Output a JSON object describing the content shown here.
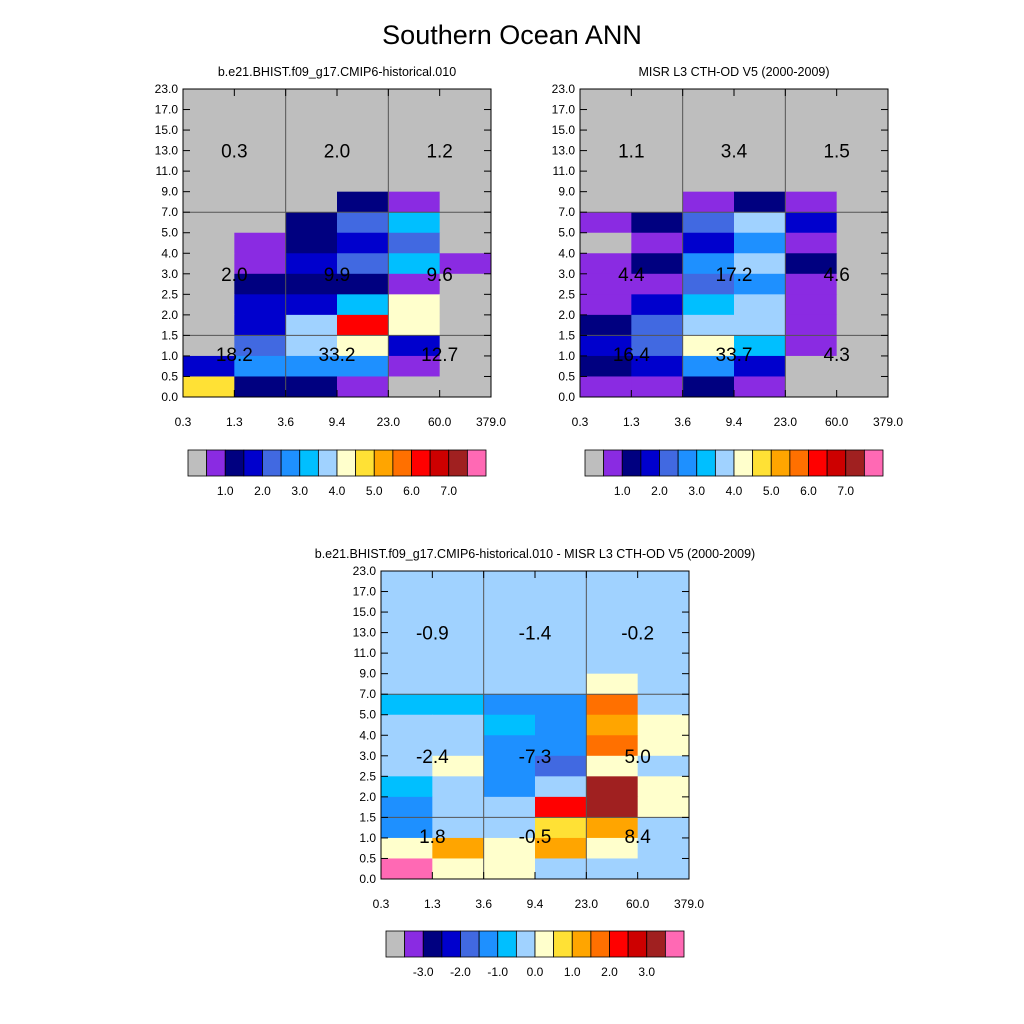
{
  "title": "Southern Ocean ANN",
  "shared_axes": {
    "x_tick_labels": [
      "0.3",
      "1.3",
      "3.6",
      "9.4",
      "23.0",
      "60.0",
      "379.0"
    ],
    "y_tick_labels": [
      "0.0",
      "0.5",
      "1.0",
      "1.5",
      "2.0",
      "2.5",
      "3.0",
      "4.0",
      "5.0",
      "7.0",
      "9.0",
      "11.0",
      "13.0",
      "15.0",
      "17.0",
      "23.0"
    ]
  },
  "colors": {
    "gray": "#bebebe",
    "violet": "#8a2be2",
    "navy": "#000080",
    "mediumblue": "#0000cd",
    "royalblue": "#4169e1",
    "dodgerblue": "#1e90ff",
    "deepskyblue": "#00bfff",
    "lightskyblue": "#a0d2ff",
    "lightyellow": "#ffffcc",
    "yellow": "#ffe135",
    "orange": "#ffa500",
    "darkorange": "#ff7000",
    "red": "#ff0000",
    "crimson": "#cd0000",
    "brown": "#a02020",
    "pink": "#ff69b4"
  },
  "colorbars": {
    "main": {
      "colors": [
        "gray",
        "violet",
        "navy",
        "mediumblue",
        "royalblue",
        "dodgerblue",
        "deepskyblue",
        "lightskyblue",
        "lightyellow",
        "yellow",
        "orange",
        "darkorange",
        "red",
        "crimson",
        "brown",
        "pink"
      ],
      "labels": [
        "1.0",
        "2.0",
        "3.0",
        "4.0",
        "5.0",
        "6.0",
        "7.0"
      ]
    },
    "diff": {
      "colors": [
        "gray",
        "violet",
        "navy",
        "mediumblue",
        "royalblue",
        "dodgerblue",
        "deepskyblue",
        "lightskyblue",
        "lightyellow",
        "yellow",
        "orange",
        "darkorange",
        "red",
        "crimson",
        "brown",
        "pink"
      ],
      "labels": [
        "-3.0",
        "-2.0",
        "-1.0",
        "0.0",
        "1.0",
        "2.0",
        "3.0"
      ]
    }
  },
  "chart_data": [
    {
      "type": "heatmap",
      "title": "b.e21.BHIST.f09_g17.CMIP6-historical.010",
      "colorbar": "main",
      "rows_top_to_bottom": [
        [
          "gray",
          "gray",
          "gray",
          "gray",
          "gray",
          "gray"
        ],
        [
          "gray",
          "gray",
          "gray",
          "gray",
          "gray",
          "gray"
        ],
        [
          "gray",
          "gray",
          "gray",
          "gray",
          "gray",
          "gray"
        ],
        [
          "gray",
          "gray",
          "gray",
          "gray",
          "gray",
          "gray"
        ],
        [
          "gray",
          "gray",
          "gray",
          "gray",
          "gray",
          "gray"
        ],
        [
          "gray",
          "gray",
          "gray",
          "navy",
          "violet",
          "gray"
        ],
        [
          "gray",
          "gray",
          "navy",
          "royalblue",
          "deepskyblue",
          "gray"
        ],
        [
          "gray",
          "violet",
          "navy",
          "mediumblue",
          "royalblue",
          "gray"
        ],
        [
          "gray",
          "violet",
          "mediumblue",
          "royalblue",
          "deepskyblue",
          "violet"
        ],
        [
          "gray",
          "navy",
          "navy",
          "navy",
          "violet",
          "gray"
        ],
        [
          "gray",
          "mediumblue",
          "mediumblue",
          "deepskyblue",
          "lightyellow",
          "gray"
        ],
        [
          "gray",
          "mediumblue",
          "lightskyblue",
          "red",
          "lightyellow",
          "gray"
        ],
        [
          "gray",
          "royalblue",
          "lightskyblue",
          "lightyellow",
          "mediumblue",
          "gray"
        ],
        [
          "mediumblue",
          "dodgerblue",
          "dodgerblue",
          "dodgerblue",
          "violet",
          "gray"
        ],
        [
          "yellow",
          "navy",
          "navy",
          "violet",
          "gray",
          "gray"
        ]
      ],
      "group_totals": [
        {
          "low_high": "high",
          "col": 0,
          "value": "0.3"
        },
        {
          "low_high": "high",
          "col": 1,
          "value": "2.0"
        },
        {
          "low_high": "high",
          "col": 2,
          "value": "1.2"
        },
        {
          "low_high": "mid",
          "col": 0,
          "value": "2.0"
        },
        {
          "low_high": "mid",
          "col": 1,
          "value": "9.9"
        },
        {
          "low_high": "mid",
          "col": 2,
          "value": "9.6"
        },
        {
          "low_high": "low",
          "col": 0,
          "value": "18.2"
        },
        {
          "low_high": "low",
          "col": 1,
          "value": "33.2"
        },
        {
          "low_high": "low",
          "col": 2,
          "value": "12.7"
        }
      ]
    },
    {
      "type": "heatmap",
      "title": "MISR L3 CTH-OD V5 (2000-2009)",
      "colorbar": "main",
      "rows_top_to_bottom": [
        [
          "gray",
          "gray",
          "gray",
          "gray",
          "gray",
          "gray"
        ],
        [
          "gray",
          "gray",
          "gray",
          "gray",
          "gray",
          "gray"
        ],
        [
          "gray",
          "gray",
          "gray",
          "gray",
          "gray",
          "gray"
        ],
        [
          "gray",
          "gray",
          "gray",
          "gray",
          "gray",
          "gray"
        ],
        [
          "gray",
          "gray",
          "gray",
          "gray",
          "gray",
          "gray"
        ],
        [
          "gray",
          "gray",
          "violet",
          "navy",
          "violet",
          "gray"
        ],
        [
          "violet",
          "navy",
          "royalblue",
          "lightskyblue",
          "mediumblue",
          "gray"
        ],
        [
          "gray",
          "violet",
          "mediumblue",
          "dodgerblue",
          "violet",
          "gray"
        ],
        [
          "violet",
          "navy",
          "dodgerblue",
          "lightskyblue",
          "navy",
          "gray"
        ],
        [
          "violet",
          "violet",
          "royalblue",
          "dodgerblue",
          "violet",
          "gray"
        ],
        [
          "violet",
          "mediumblue",
          "deepskyblue",
          "lightskyblue",
          "violet",
          "gray"
        ],
        [
          "navy",
          "royalblue",
          "lightskyblue",
          "lightskyblue",
          "violet",
          "gray"
        ],
        [
          "mediumblue",
          "royalblue",
          "lightyellow",
          "deepskyblue",
          "violet",
          "gray"
        ],
        [
          "navy",
          "mediumblue",
          "dodgerblue",
          "mediumblue",
          "gray",
          "gray"
        ],
        [
          "violet",
          "violet",
          "navy",
          "violet",
          "gray",
          "gray"
        ]
      ],
      "group_totals": [
        {
          "low_high": "high",
          "col": 0,
          "value": "1.1"
        },
        {
          "low_high": "high",
          "col": 1,
          "value": "3.4"
        },
        {
          "low_high": "high",
          "col": 2,
          "value": "1.5"
        },
        {
          "low_high": "mid",
          "col": 0,
          "value": "4.4"
        },
        {
          "low_high": "mid",
          "col": 1,
          "value": "17.2"
        },
        {
          "low_high": "mid",
          "col": 2,
          "value": "4.6"
        },
        {
          "low_high": "low",
          "col": 0,
          "value": "16.4"
        },
        {
          "low_high": "low",
          "col": 1,
          "value": "33.7"
        },
        {
          "low_high": "low",
          "col": 2,
          "value": "4.3"
        }
      ]
    },
    {
      "type": "heatmap",
      "title": "b.e21.BHIST.f09_g17.CMIP6-historical.010 - MISR L3 CTH-OD V5 (2000-2009)",
      "colorbar": "diff",
      "rows_top_to_bottom": [
        [
          "lightskyblue",
          "lightskyblue",
          "lightskyblue",
          "lightskyblue",
          "lightskyblue",
          "lightskyblue"
        ],
        [
          "lightskyblue",
          "lightskyblue",
          "lightskyblue",
          "lightskyblue",
          "lightskyblue",
          "lightskyblue"
        ],
        [
          "lightskyblue",
          "lightskyblue",
          "lightskyblue",
          "lightskyblue",
          "lightskyblue",
          "lightskyblue"
        ],
        [
          "lightskyblue",
          "lightskyblue",
          "lightskyblue",
          "lightskyblue",
          "lightskyblue",
          "lightskyblue"
        ],
        [
          "lightskyblue",
          "lightskyblue",
          "lightskyblue",
          "lightskyblue",
          "lightskyblue",
          "lightskyblue"
        ],
        [
          "lightskyblue",
          "lightskyblue",
          "lightskyblue",
          "lightskyblue",
          "lightyellow",
          "lightskyblue"
        ],
        [
          "deepskyblue",
          "deepskyblue",
          "dodgerblue",
          "dodgerblue",
          "darkorange",
          "lightskyblue"
        ],
        [
          "lightskyblue",
          "lightskyblue",
          "deepskyblue",
          "dodgerblue",
          "orange",
          "lightyellow"
        ],
        [
          "lightskyblue",
          "lightskyblue",
          "dodgerblue",
          "dodgerblue",
          "darkorange",
          "lightyellow"
        ],
        [
          "lightskyblue",
          "lightyellow",
          "dodgerblue",
          "royalblue",
          "lightyellow",
          "lightskyblue"
        ],
        [
          "deepskyblue",
          "lightskyblue",
          "dodgerblue",
          "lightskyblue",
          "brown",
          "lightyellow"
        ],
        [
          "dodgerblue",
          "lightskyblue",
          "lightskyblue",
          "red",
          "brown",
          "lightyellow"
        ],
        [
          "dodgerblue",
          "lightskyblue",
          "lightskyblue",
          "yellow",
          "orange",
          "lightskyblue"
        ],
        [
          "lightyellow",
          "orange",
          "lightyellow",
          "orange",
          "lightyellow",
          "lightskyblue"
        ],
        [
          "pink",
          "lightyellow",
          "lightyellow",
          "lightskyblue",
          "lightskyblue",
          "lightskyblue"
        ]
      ],
      "group_totals": [
        {
          "low_high": "high",
          "col": 0,
          "value": "-0.9"
        },
        {
          "low_high": "high",
          "col": 1,
          "value": "-1.4"
        },
        {
          "low_high": "high",
          "col": 2,
          "value": "-0.2"
        },
        {
          "low_high": "mid",
          "col": 0,
          "value": "-2.4"
        },
        {
          "low_high": "mid",
          "col": 1,
          "value": "-7.3"
        },
        {
          "low_high": "mid",
          "col": 2,
          "value": "5.0"
        },
        {
          "low_high": "low",
          "col": 0,
          "value": "1.8"
        },
        {
          "low_high": "low",
          "col": 1,
          "value": "-0.5"
        },
        {
          "low_high": "low",
          "col": 2,
          "value": "8.4"
        }
      ]
    }
  ]
}
